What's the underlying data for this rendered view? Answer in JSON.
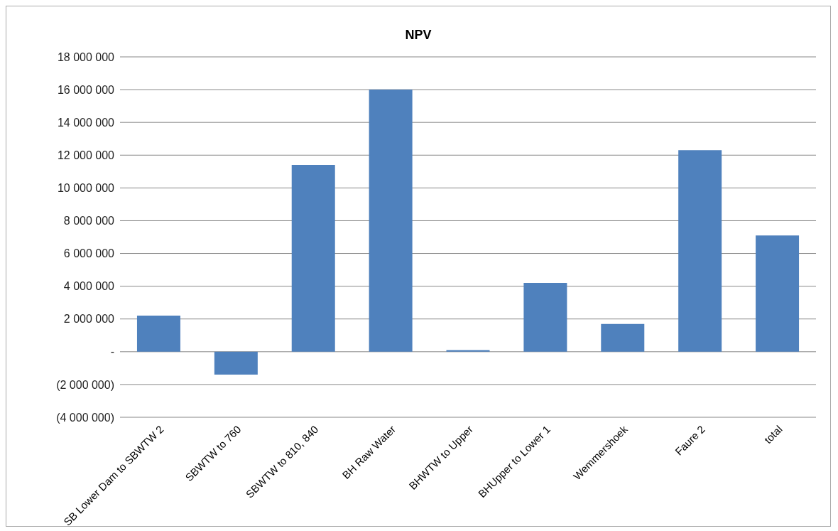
{
  "chart_data": {
    "type": "bar",
    "title": "NPV",
    "categories": [
      "SB Lower Dam to SBWTW 2",
      "SBWTW to 760",
      "SBWTW to 810, 840",
      "BH Raw Water",
      "BHWTW to Upper",
      "BHUpper to Lower 1",
      "Wemmershoek",
      "Faure 2",
      "total"
    ],
    "values": [
      2200000,
      -1400000,
      11400000,
      16000000,
      100000,
      4200000,
      1700000,
      12300000,
      7100000
    ],
    "color": "#4f81bd",
    "ylim": [
      -4000000,
      18000000
    ],
    "yticks": [
      {
        "value": -4000000,
        "label": "(4 000 000)"
      },
      {
        "value": -2000000,
        "label": "(2 000 000)"
      },
      {
        "value": 0,
        "label": "-"
      },
      {
        "value": 2000000,
        "label": "2 000 000"
      },
      {
        "value": 4000000,
        "label": "4 000 000"
      },
      {
        "value": 6000000,
        "label": "6 000 000"
      },
      {
        "value": 8000000,
        "label": "8 000 000"
      },
      {
        "value": 10000000,
        "label": "10 000 000"
      },
      {
        "value": 12000000,
        "label": "12 000 000"
      },
      {
        "value": 14000000,
        "label": "14 000 000"
      },
      {
        "value": 16000000,
        "label": "16 000 000"
      },
      {
        "value": 18000000,
        "label": "18 000 000"
      }
    ],
    "grid": "y"
  }
}
